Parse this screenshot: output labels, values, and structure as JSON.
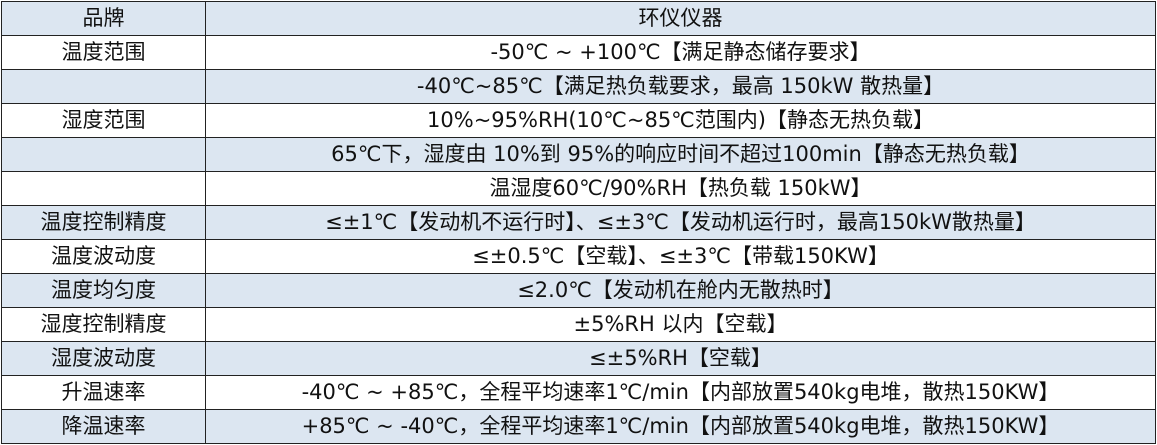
{
  "colors": {
    "row_alt": "#dce6f1",
    "row_plain": "#ffffff",
    "border": "#222222"
  },
  "table": {
    "header": {
      "label": "品牌",
      "value": "环仪仪器"
    },
    "rows": [
      {
        "label": "温度范围",
        "value": "-50℃ ~ +100℃【满足静态储存要求】"
      },
      {
        "label": "",
        "value": "-40℃~85℃【满足热负载要求，最高 150kW 散热量】"
      },
      {
        "label": "湿度范围",
        "value": "10%~95%RH(10℃~85℃范围内)【静态无热负载】"
      },
      {
        "label": "",
        "value": "65℃下，湿度由 10%到 95%的响应时间不超过100min【静态无热负载】"
      },
      {
        "label": "",
        "value": "温湿度60℃/90%RH【热负载 150kW】"
      },
      {
        "label": "温度控制精度",
        "value": "≤±1℃【发动机不运行时】、≤±3℃【发动机运行时，最高150kW散热量】"
      },
      {
        "label": "温度波动度",
        "value": "≤±0.5℃【空载】、≤±3℃【带载150KW】"
      },
      {
        "label": "温度均匀度",
        "value": "≤2.0℃【发动机在舱内无散热时】"
      },
      {
        "label": "湿度控制精度",
        "value": "±5%RH 以内【空载】"
      },
      {
        "label": "湿度波动度",
        "value": "≤±5%RH【空载】"
      },
      {
        "label": "升温速率",
        "value": "-40℃ ~ +85℃，全程平均速率1℃/min【内部放置540kg电堆，散热150KW】"
      },
      {
        "label": "降温速率",
        "value": "+85℃ ~ -40℃，全程平均速率1℃/min【内部放置540kg电堆，散热150KW】"
      }
    ]
  }
}
